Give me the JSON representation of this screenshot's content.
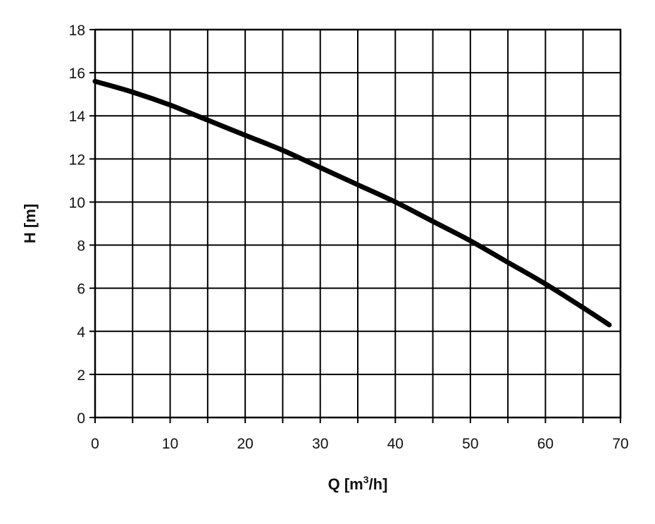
{
  "chart_data": {
    "type": "line",
    "title": "",
    "xlabel_main": "Q [m",
    "xlabel_sup": "3",
    "xlabel_tail": "/h]",
    "ylabel": "H [m]",
    "xlim": [
      0,
      70
    ],
    "ylim": [
      0,
      18
    ],
    "x_ticks": [
      "0",
      "10",
      "20",
      "30",
      "40",
      "50",
      "60",
      "70"
    ],
    "y_ticks": [
      "0",
      "2",
      "4",
      "6",
      "8",
      "10",
      "12",
      "14",
      "16",
      "18"
    ],
    "x_grid": [
      0,
      5,
      10,
      15,
      20,
      25,
      30,
      35,
      40,
      45,
      50,
      55,
      60,
      65,
      70
    ],
    "y_grid": [
      0,
      2,
      4,
      6,
      8,
      10,
      12,
      14,
      16,
      18
    ],
    "grid": true,
    "legend": "none",
    "series": [
      {
        "color": "#000000",
        "x": [
          0,
          5,
          10,
          15,
          20,
          25,
          30,
          35,
          40,
          45,
          50,
          55,
          60,
          65,
          68.5
        ],
        "y": [
          15.6,
          15.1,
          14.5,
          13.8,
          13.1,
          12.4,
          11.6,
          10.8,
          10.0,
          9.1,
          8.2,
          7.2,
          6.2,
          5.1,
          4.3
        ]
      }
    ]
  }
}
